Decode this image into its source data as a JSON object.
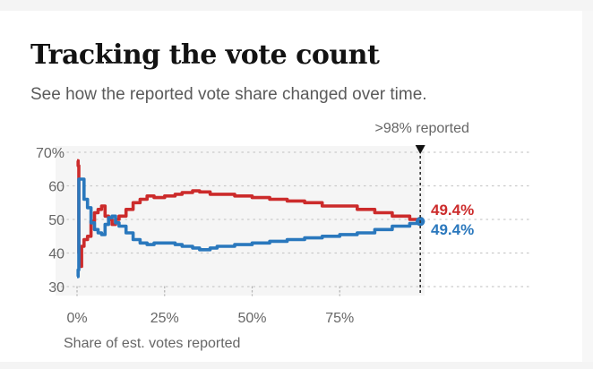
{
  "header": {
    "title": "Tracking the vote count",
    "subtitle": "See how the reported vote share changed over time."
  },
  "colors": {
    "red": "#cc2b2b",
    "blue": "#2a78bd",
    "plot_background": "#f5f5f5",
    "grid": "#c9c9c9"
  },
  "chart_data": {
    "type": "line",
    "title": "Tracking the vote count",
    "subtitle": "See how the reported vote share changed over time.",
    "xlabel": "Share of est. votes reported",
    "ylabel": "",
    "xlim": [
      0,
      100
    ],
    "ylim": [
      30,
      70
    ],
    "x_ticks": [
      0,
      25,
      50,
      75
    ],
    "x_tick_labels": [
      "0%",
      "25%",
      "50%",
      "75%"
    ],
    "y_ticks": [
      70,
      60,
      50,
      40,
      30
    ],
    "y_tick_labels": [
      "70%",
      "60",
      "50",
      "40",
      "30"
    ],
    "grid": true,
    "step": true,
    "annotation": {
      "x": 98,
      "label": ">98% reported"
    },
    "series": [
      {
        "color": "#cc2b2b",
        "end_label": "49.4%",
        "points": [
          [
            0,
            67.5
          ],
          [
            0.3,
            66
          ],
          [
            0.5,
            40
          ],
          [
            0.9,
            36
          ],
          [
            1.3,
            42
          ],
          [
            2,
            44
          ],
          [
            3,
            45
          ],
          [
            4,
            49.5
          ],
          [
            5,
            52
          ],
          [
            6,
            53
          ],
          [
            7,
            54
          ],
          [
            8,
            51
          ],
          [
            9,
            50
          ],
          [
            10,
            48.5
          ],
          [
            11,
            50
          ],
          [
            12,
            51
          ],
          [
            14,
            53
          ],
          [
            16,
            55
          ],
          [
            18,
            56
          ],
          [
            20,
            57
          ],
          [
            22,
            56.5
          ],
          [
            25,
            57
          ],
          [
            28,
            57.5
          ],
          [
            30,
            58
          ],
          [
            33,
            58.5
          ],
          [
            35,
            58.2
          ],
          [
            38,
            57.5
          ],
          [
            40,
            57.5
          ],
          [
            45,
            57
          ],
          [
            50,
            56.5
          ],
          [
            55,
            56
          ],
          [
            60,
            55.5
          ],
          [
            65,
            55
          ],
          [
            70,
            54
          ],
          [
            75,
            54
          ],
          [
            80,
            53
          ],
          [
            85,
            52
          ],
          [
            90,
            51
          ],
          [
            95,
            50
          ],
          [
            98,
            49.4
          ]
        ]
      },
      {
        "color": "#2a78bd",
        "end_label": "49.4%",
        "points": [
          [
            0,
            33
          ],
          [
            0.3,
            35
          ],
          [
            0.5,
            62
          ],
          [
            1,
            62
          ],
          [
            2,
            56
          ],
          [
            3,
            53.5
          ],
          [
            4,
            49
          ],
          [
            5,
            47
          ],
          [
            6,
            46
          ],
          [
            7,
            45.5
          ],
          [
            8,
            48.5
          ],
          [
            9,
            50.5
          ],
          [
            10,
            51
          ],
          [
            11,
            49
          ],
          [
            12,
            48
          ],
          [
            14,
            46
          ],
          [
            16,
            44
          ],
          [
            18,
            43
          ],
          [
            20,
            42.5
          ],
          [
            22,
            43
          ],
          [
            25,
            43
          ],
          [
            28,
            42.5
          ],
          [
            30,
            42
          ],
          [
            33,
            41.5
          ],
          [
            35,
            41
          ],
          [
            38,
            41.5
          ],
          [
            40,
            42
          ],
          [
            45,
            42.5
          ],
          [
            50,
            43
          ],
          [
            55,
            43.5
          ],
          [
            60,
            44
          ],
          [
            65,
            44.5
          ],
          [
            70,
            45
          ],
          [
            75,
            45.5
          ],
          [
            80,
            46
          ],
          [
            85,
            47
          ],
          [
            90,
            48
          ],
          [
            95,
            48.8
          ],
          [
            98,
            49.4
          ]
        ]
      }
    ]
  }
}
